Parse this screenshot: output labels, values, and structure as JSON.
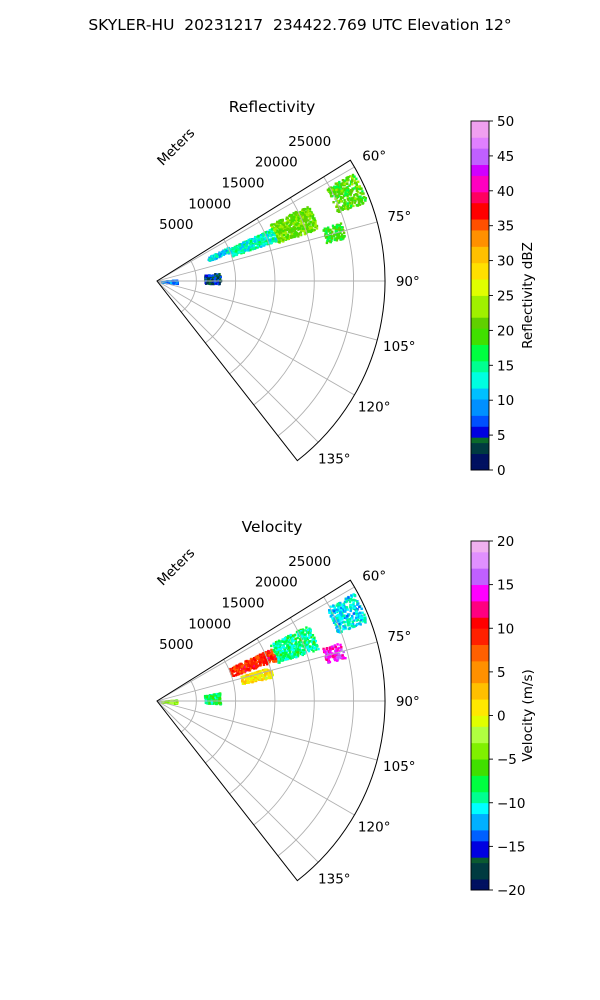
{
  "suptitle": "SKYLER-HU  20231217  234422.769 UTC Elevation 12°",
  "chart_data": [
    {
      "type": "polar-sector",
      "title": "Reflectivity",
      "radial_label": "Meters",
      "radial_ticks": [
        "5000",
        "10000",
        "15000",
        "20000",
        "25000"
      ],
      "radial_tick_values": [
        5000,
        10000,
        15000,
        20000,
        25000
      ],
      "rmax": 29000,
      "angle_ticks": [
        "60°",
        "75°",
        "90°",
        "105°",
        "120°",
        "135°"
      ],
      "angle_tick_values": [
        60,
        75,
        90,
        105,
        120,
        135
      ],
      "theta_range": [
        58,
        142
      ],
      "grid": true,
      "colorbar": {
        "label": "Reflectivity dBZ",
        "range": [
          0,
          50
        ],
        "ticks": [
          "0",
          "5",
          "10",
          "15",
          "20",
          "25",
          "30",
          "35",
          "40",
          "45",
          "50"
        ],
        "tick_values": [
          0,
          5,
          10,
          15,
          20,
          25,
          30,
          35,
          40,
          45,
          50
        ],
        "stops": [
          [
            0,
            "#001060"
          ],
          [
            2,
            "#003a40"
          ],
          [
            4,
            "#0a6a2a"
          ],
          [
            5,
            "#0000e0"
          ],
          [
            6,
            "#0050ff"
          ],
          [
            8,
            "#0090ff"
          ],
          [
            10,
            "#00c0ff"
          ],
          [
            12,
            "#00ffe0"
          ],
          [
            14,
            "#00ff90"
          ],
          [
            16,
            "#00ff40"
          ],
          [
            18,
            "#40e000"
          ],
          [
            20,
            "#60d000"
          ],
          [
            22,
            "#a0f000"
          ],
          [
            25,
            "#e0ff00"
          ],
          [
            27,
            "#ffe000"
          ],
          [
            30,
            "#ffc000"
          ],
          [
            32,
            "#ff9000"
          ],
          [
            34,
            "#ff5000"
          ],
          [
            36,
            "#ff0000"
          ],
          [
            38,
            "#ff0060"
          ],
          [
            40,
            "#ff00c0"
          ],
          [
            42,
            "#d000ff"
          ],
          [
            44,
            "#c060ff"
          ],
          [
            46,
            "#e080ff"
          ],
          [
            48,
            "#f0a0f0"
          ],
          [
            50,
            "#ffe0ff"
          ]
        ]
      },
      "echo_regions": [
        {
          "theta": [
            61,
            69
          ],
          "r": [
            24500,
            28500
          ],
          "value": 20
        },
        {
          "theta": [
            72,
            77
          ],
          "r": [
            22000,
            24500
          ],
          "value": 19
        },
        {
          "theta": [
            63,
            72
          ],
          "r": [
            16000,
            21500
          ],
          "value": 21
        },
        {
          "theta": [
            65,
            71
          ],
          "r": [
            10000,
            16000
          ],
          "value": 14
        },
        {
          "theta": [
            64,
            68
          ],
          "r": [
            7000,
            10000
          ],
          "value": 12
        },
        {
          "theta": [
            82,
            92
          ],
          "r": [
            6000,
            8000
          ],
          "value": 5
        },
        {
          "theta": [
            85,
            95
          ],
          "r": [
            500,
            2500
          ],
          "value": 8
        }
      ]
    },
    {
      "type": "polar-sector",
      "title": "Velocity",
      "radial_label": "Meters",
      "radial_ticks": [
        "5000",
        "10000",
        "15000",
        "20000",
        "25000"
      ],
      "radial_tick_values": [
        5000,
        10000,
        15000,
        20000,
        25000
      ],
      "rmax": 29000,
      "angle_ticks": [
        "60°",
        "75°",
        "90°",
        "105°",
        "120°",
        "135°"
      ],
      "angle_tick_values": [
        60,
        75,
        90,
        105,
        120,
        135
      ],
      "theta_range": [
        58,
        142
      ],
      "grid": true,
      "colorbar": {
        "label": "Velocity (m/s)",
        "range": [
          -20,
          20
        ],
        "ticks": [
          "−20",
          "−15",
          "−10",
          "−5",
          "0",
          "5",
          "10",
          "15",
          "20"
        ],
        "tick_values": [
          -20,
          -15,
          -10,
          -5,
          0,
          5,
          10,
          15,
          20
        ],
        "stops": [
          [
            -20,
            "#001060"
          ],
          [
            -18.5,
            "#003a40"
          ],
          [
            -17,
            "#0a5a30"
          ],
          [
            -16,
            "#0000e0"
          ],
          [
            -14.5,
            "#0060ff"
          ],
          [
            -13,
            "#00b0ff"
          ],
          [
            -11.5,
            "#00ffff"
          ],
          [
            -10,
            "#00ff90"
          ],
          [
            -8.5,
            "#00ff40"
          ],
          [
            -7,
            "#40e000"
          ],
          [
            -5,
            "#80f000"
          ],
          [
            -3,
            "#b0ff40"
          ],
          [
            -1,
            "#e0ff00"
          ],
          [
            0,
            "#ffe800"
          ],
          [
            2,
            "#ffc000"
          ],
          [
            4,
            "#ff9000"
          ],
          [
            6,
            "#ff6000"
          ],
          [
            8,
            "#ff2000"
          ],
          [
            10,
            "#ff0000"
          ],
          [
            11,
            "#ff0080"
          ],
          [
            13,
            "#ff00ff"
          ],
          [
            15,
            "#c060ff"
          ],
          [
            17,
            "#e090ff"
          ],
          [
            19,
            "#f0b0f0"
          ],
          [
            20,
            "#ffe0ff"
          ]
        ]
      },
      "echo_regions": [
        {
          "theta": [
            61,
            69
          ],
          "r": [
            24500,
            28500
          ],
          "value": -11
        },
        {
          "theta": [
            72,
            77
          ],
          "r": [
            22000,
            24500
          ],
          "value": 14
        },
        {
          "theta": [
            63,
            72
          ],
          "r": [
            16000,
            21500
          ],
          "value": -9
        },
        {
          "theta": [
            65,
            71
          ],
          "r": [
            10000,
            16000
          ],
          "value": 9
        },
        {
          "theta": [
            73,
            78
          ],
          "r": [
            11000,
            15000
          ],
          "value": 1
        },
        {
          "theta": [
            82,
            92
          ],
          "r": [
            6000,
            8000
          ],
          "value": -8
        },
        {
          "theta": [
            85,
            95
          ],
          "r": [
            500,
            2500
          ],
          "value": -3
        }
      ]
    }
  ]
}
